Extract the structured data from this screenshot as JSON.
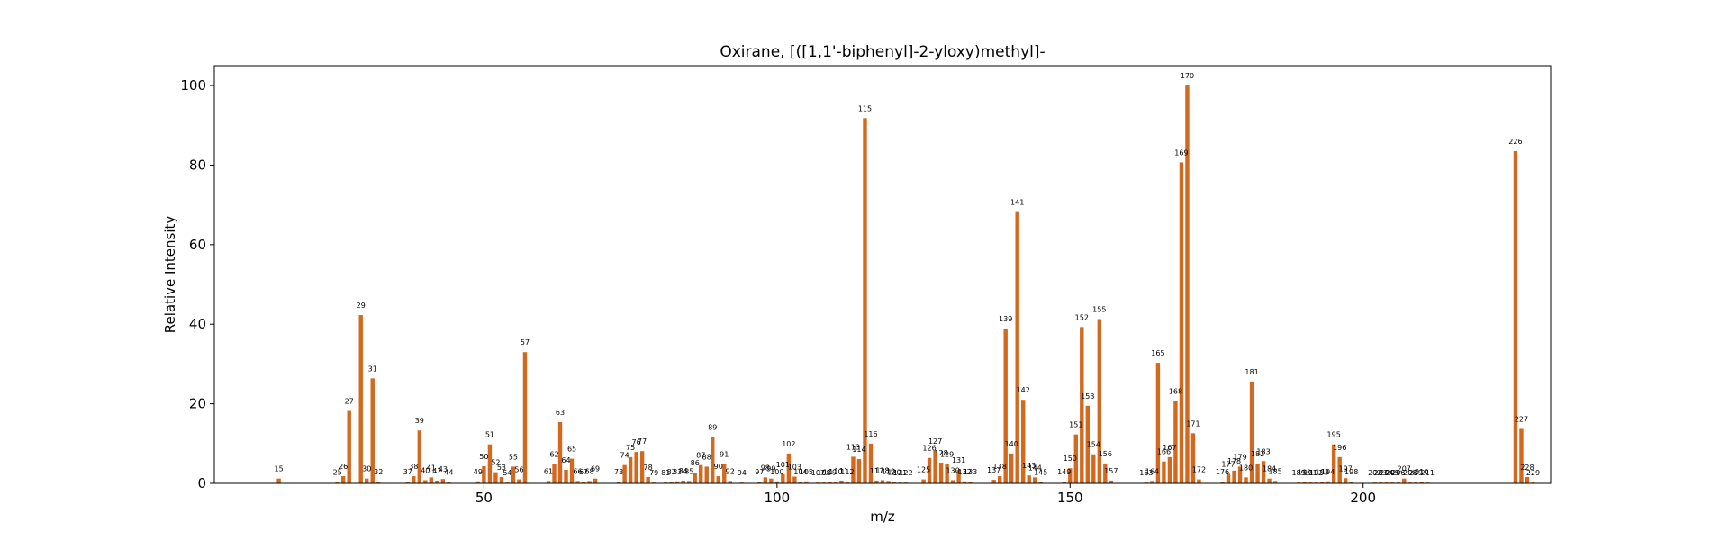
{
  "chart_data": {
    "type": "bar",
    "title": "Oxirane, [([1,1'-biphenyl]-2-yloxy)methyl]-",
    "xlabel": "m/z",
    "ylabel": "Relative Intensity",
    "xlim": [
      4,
      232
    ],
    "ylim": [
      0,
      105
    ],
    "xticks": [
      50,
      100,
      150,
      200
    ],
    "yticks": [
      0,
      20,
      40,
      60,
      80,
      100
    ],
    "bar_color": "#d2691e",
    "grid": false,
    "series": [
      {
        "x": [
          15,
          25,
          26,
          27,
          29,
          30,
          31,
          32,
          37,
          38,
          39,
          40,
          41,
          42,
          43,
          44,
          49,
          50,
          51,
          52,
          53,
          54,
          55,
          56,
          57,
          61,
          62,
          63,
          64,
          65,
          66,
          67,
          68,
          69,
          73,
          74,
          75,
          76,
          77,
          78,
          79,
          81,
          82,
          83,
          84,
          85,
          86,
          87,
          88,
          89,
          90,
          91,
          92,
          94,
          97,
          98,
          99,
          100,
          101,
          102,
          103,
          104,
          105,
          107,
          108,
          109,
          110,
          111,
          112,
          113,
          114,
          115,
          116,
          117,
          118,
          119,
          120,
          121,
          122,
          125,
          126,
          127,
          128,
          129,
          130,
          131,
          132,
          133,
          137,
          138,
          139,
          140,
          141,
          142,
          143,
          144,
          145,
          149,
          150,
          151,
          152,
          153,
          154,
          155,
          156,
          157,
          163,
          164,
          165,
          166,
          167,
          168,
          169,
          170,
          171,
          172,
          176,
          177,
          178,
          179,
          180,
          181,
          182,
          183,
          184,
          185,
          189,
          190,
          191,
          192,
          193,
          194,
          195,
          196,
          197,
          198,
          202,
          203,
          204,
          205,
          206,
          207,
          208,
          209,
          210,
          211,
          226,
          227,
          228,
          229
        ],
        "values": [
          1.2,
          0.3,
          1.8,
          18.2,
          42.3,
          1.2,
          26.4,
          0.4,
          0.4,
          1.8,
          13.3,
          0.8,
          1.5,
          0.7,
          1.1,
          0.3,
          0.5,
          4.3,
          9.8,
          2.8,
          1.6,
          0.2,
          4.2,
          1.0,
          33.0,
          0.6,
          4.9,
          15.4,
          3.4,
          6.2,
          0.6,
          0.4,
          0.6,
          1.2,
          0.4,
          4.6,
          6.6,
          7.9,
          8.1,
          1.6,
          0.2,
          0.2,
          0.4,
          0.5,
          0.7,
          0.6,
          2.7,
          4.6,
          4.2,
          11.7,
          1.8,
          4.9,
          0.6,
          0.2,
          0.4,
          1.5,
          1.2,
          0.5,
          2.3,
          7.5,
          1.7,
          0.4,
          0.5,
          0.2,
          0.2,
          0.3,
          0.4,
          0.7,
          0.4,
          6.7,
          6.1,
          91.8,
          10.0,
          0.7,
          0.8,
          0.6,
          0.3,
          0.2,
          0.2,
          1.0,
          6.4,
          8.2,
          5.2,
          4.9,
          0.8,
          3.4,
          0.5,
          0.4,
          0.9,
          1.8,
          38.9,
          7.5,
          68.2,
          21.0,
          2.0,
          1.5,
          0.3,
          0.4,
          3.8,
          12.3,
          39.3,
          19.5,
          7.3,
          41.3,
          5.0,
          0.7,
          0.2,
          0.6,
          30.3,
          5.5,
          6.6,
          20.7,
          80.7,
          100.0,
          12.6,
          1.0,
          0.4,
          2.4,
          3.2,
          4.2,
          1.5,
          25.6,
          5.0,
          5.6,
          1.2,
          0.6,
          0.2,
          0.3,
          0.2,
          0.2,
          0.3,
          0.5,
          9.8,
          6.6,
          1.3,
          0.4,
          0.2,
          0.2,
          0.2,
          0.2,
          0.2,
          1.2,
          0.2,
          0.2,
          0.4,
          0.2,
          83.5,
          13.7,
          1.6,
          0.2
        ]
      }
    ]
  }
}
